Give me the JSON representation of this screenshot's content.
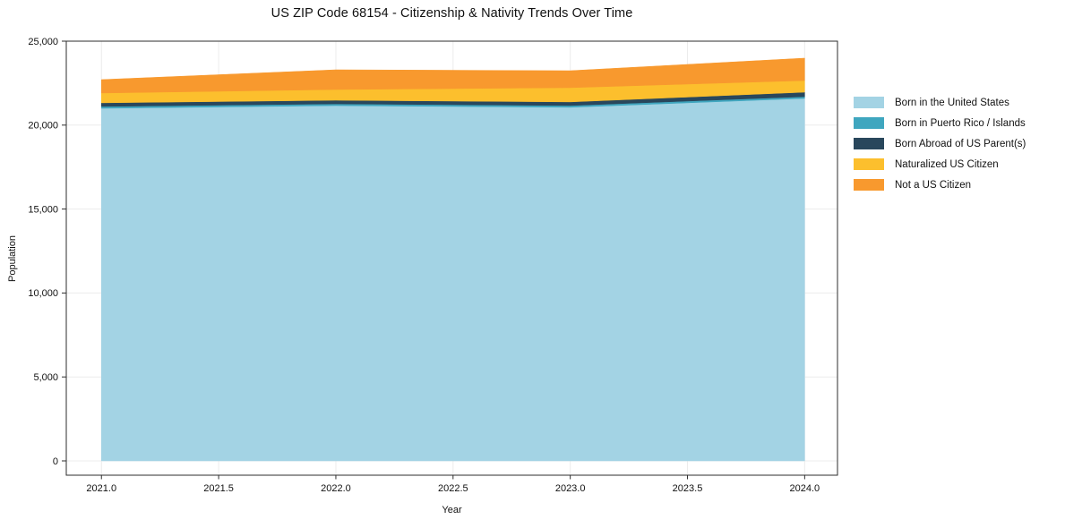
{
  "title": "US ZIP Code 68154 - Citizenship & Nativity Trends Over Time",
  "chart_data": {
    "type": "area",
    "stacked": true,
    "title": "US ZIP Code 68154 - Citizenship & Nativity Trends Over Time",
    "xlabel": "Year",
    "ylabel": "Population",
    "x": [
      2021,
      2022,
      2023,
      2024
    ],
    "series": [
      {
        "name": "Born in the United States",
        "color": "#a3d3e4",
        "values": [
          21000,
          21160,
          21060,
          21590
        ]
      },
      {
        "name": "Born in Puerto Rico / Islands",
        "color": "#3fa6bf",
        "values": [
          110,
          105,
          105,
          105
        ]
      },
      {
        "name": "Born Abroad of US Parent(s)",
        "color": "#29475c",
        "values": [
          215,
          215,
          215,
          265
        ]
      },
      {
        "name": "Naturalized US Citizen",
        "color": "#fcbf2d",
        "values": [
          585,
          640,
          850,
          695
        ]
      },
      {
        "name": "Not a US Citizen",
        "color": "#f8992e",
        "values": [
          800,
          1175,
          1010,
          1335
        ]
      }
    ],
    "totals_by_year": [
      22710,
      23295,
      23240,
      23990
    ],
    "x_ticks": [
      2021.0,
      2021.5,
      2022.0,
      2022.5,
      2023.0,
      2023.5,
      2024.0
    ],
    "y_ticks": [
      0,
      5000,
      10000,
      15000,
      20000,
      25000
    ],
    "xlim": [
      2020.85,
      2024.14
    ],
    "ylim": [
      -853,
      25000
    ],
    "grid": true,
    "legend_position": "center-right",
    "colors": {
      "grid": "#ececec",
      "spine": "#2e2e2e",
      "text": "#111111",
      "background": "#ffffff"
    }
  }
}
